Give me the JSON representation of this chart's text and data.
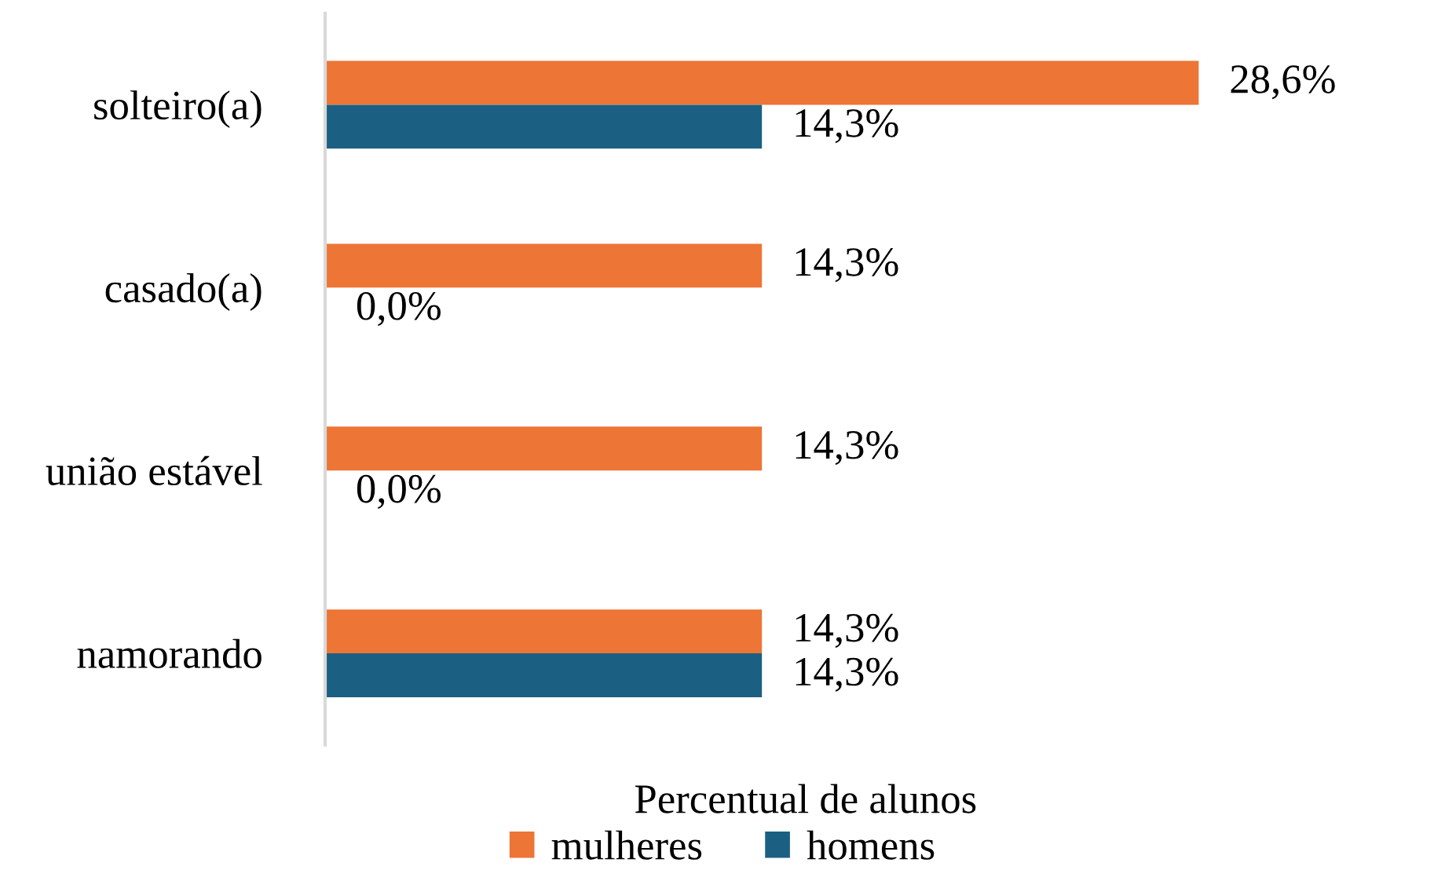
{
  "chart_data": {
    "type": "bar",
    "orientation": "horizontal",
    "xlabel": "Percentual de alunos",
    "categories": [
      "solteiro(a)",
      "casado(a)",
      "união estável",
      "namorando"
    ],
    "series": [
      {
        "name": "mulheres",
        "color": "#ed7535",
        "values": [
          28.6,
          14.3,
          14.3,
          14.3
        ],
        "value_labels": [
          "28,6%",
          "14,3%",
          "14,3%",
          "14,3%"
        ]
      },
      {
        "name": "homens",
        "color": "#1b6082",
        "values": [
          14.3,
          0.0,
          0.0,
          14.3
        ],
        "value_labels": [
          "14,3%",
          "0,0%",
          "0,0%",
          "14,3%"
        ]
      }
    ],
    "tick_labels": "y",
    "grid": false,
    "legend": "bottom"
  }
}
